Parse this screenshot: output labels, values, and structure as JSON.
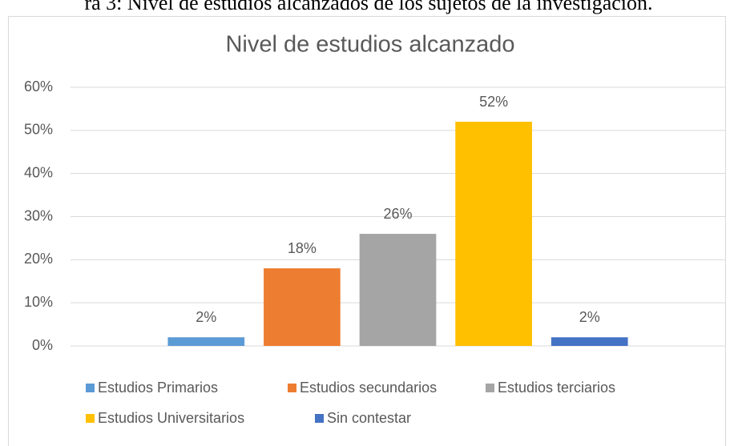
{
  "caption": "ra 3: Nivel de estudios alcanzados de los sujetos de la investigación.",
  "chart_data": {
    "type": "bar",
    "title": "Nivel de estudios alcanzado",
    "categories": [
      null
    ],
    "series": [
      {
        "name": "Estudios Primarios",
        "color": "#5b9bd5",
        "values": [
          2
        ],
        "value_labels": [
          "2%"
        ]
      },
      {
        "name": "Estudios secundarios",
        "color": "#ed7d31",
        "values": [
          18
        ],
        "value_labels": [
          "18%"
        ]
      },
      {
        "name": "Estudios terciarios",
        "color": "#a5a5a5",
        "values": [
          26
        ],
        "value_labels": [
          "26%"
        ]
      },
      {
        "name": "Estudios Universitarios",
        "color": "#ffc000",
        "values": [
          52
        ],
        "value_labels": [
          "52%"
        ]
      },
      {
        "name": "Sin contestar",
        "color": "#4472c4",
        "values": [
          2
        ],
        "value_labels": [
          "2%"
        ]
      }
    ],
    "ylim": [
      0,
      60
    ],
    "yticks": [
      {
        "value": 0,
        "label": "0%"
      },
      {
        "value": 10,
        "label": "10%"
      },
      {
        "value": 20,
        "label": "20%"
      },
      {
        "value": 30,
        "label": "30%"
      },
      {
        "value": 40,
        "label": "40%"
      },
      {
        "value": 50,
        "label": "50%"
      },
      {
        "value": 60,
        "label": "60%"
      }
    ],
    "grid": true,
    "legend": "bottom"
  }
}
